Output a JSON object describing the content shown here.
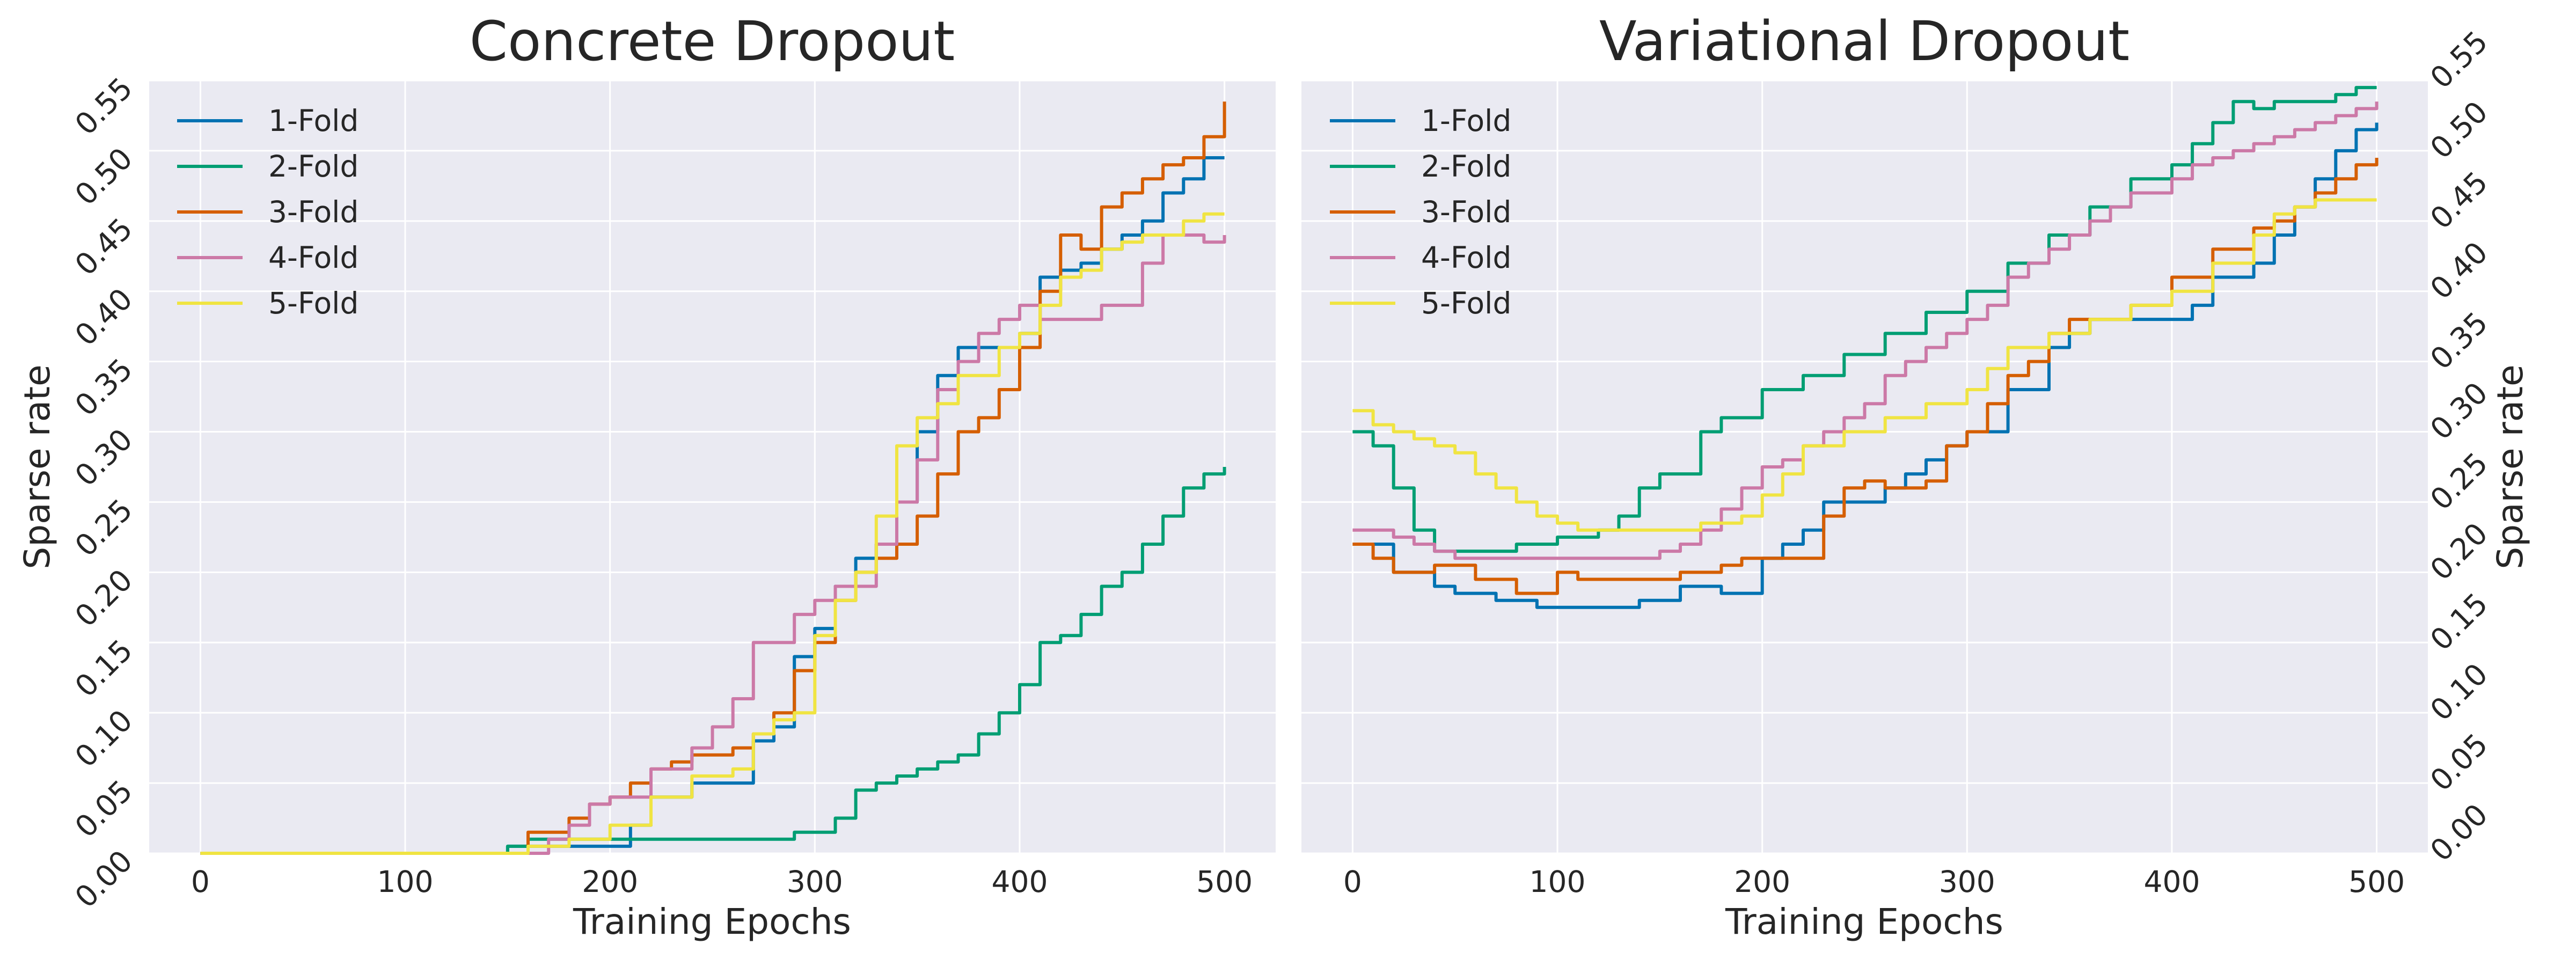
{
  "chart_data": [
    {
      "type": "line",
      "title": "Concrete Dropout",
      "xlabel": "Training Epochs",
      "ylabel": "Sparse rate",
      "ylabel_side": "left",
      "xlim": [
        -25,
        525
      ],
      "ylim": [
        0.0,
        0.55
      ],
      "xticks": [
        "0",
        "100",
        "200",
        "300",
        "400",
        "500"
      ],
      "yticks": [
        "0.00",
        "0.05",
        "0.10",
        "0.15",
        "0.20",
        "0.25",
        "0.30",
        "0.35",
        "0.40",
        "0.45",
        "0.50",
        "0.55"
      ],
      "grid": true,
      "legend": "top-left",
      "series": [
        {
          "name": "1-Fold",
          "color": "#0072B2",
          "x": [
            0,
            140,
            150,
            160,
            200,
            210,
            220,
            240,
            260,
            270,
            280,
            290,
            300,
            310,
            320,
            330,
            340,
            350,
            360,
            370,
            380,
            390,
            400,
            410,
            420,
            430,
            440,
            450,
            460,
            470,
            480,
            490,
            500
          ],
          "y": [
            0.0,
            0.0,
            0.005,
            0.005,
            0.005,
            0.02,
            0.04,
            0.05,
            0.05,
            0.08,
            0.09,
            0.14,
            0.16,
            0.19,
            0.21,
            0.22,
            0.25,
            0.3,
            0.34,
            0.36,
            0.36,
            0.36,
            0.37,
            0.41,
            0.415,
            0.42,
            0.43,
            0.44,
            0.45,
            0.47,
            0.48,
            0.495,
            0.495
          ]
        },
        {
          "name": "2-Fold",
          "color": "#009E73",
          "x": [
            0,
            140,
            150,
            160,
            280,
            290,
            300,
            310,
            320,
            330,
            340,
            350,
            360,
            370,
            380,
            390,
            400,
            410,
            420,
            430,
            440,
            450,
            460,
            470,
            480,
            490,
            500
          ],
          "y": [
            0.0,
            0.0,
            0.005,
            0.01,
            0.01,
            0.015,
            0.015,
            0.025,
            0.045,
            0.05,
            0.055,
            0.06,
            0.065,
            0.07,
            0.085,
            0.1,
            0.12,
            0.15,
            0.155,
            0.17,
            0.19,
            0.2,
            0.22,
            0.24,
            0.26,
            0.27,
            0.275
          ]
        },
        {
          "name": "3-Fold",
          "color": "#D55E00",
          "x": [
            0,
            150,
            160,
            170,
            180,
            190,
            200,
            210,
            220,
            230,
            240,
            250,
            260,
            270,
            280,
            290,
            300,
            310,
            320,
            330,
            340,
            350,
            360,
            370,
            380,
            390,
            400,
            410,
            420,
            430,
            440,
            450,
            460,
            470,
            480,
            490,
            500
          ],
          "y": [
            0.0,
            0.0,
            0.015,
            0.015,
            0.025,
            0.035,
            0.04,
            0.05,
            0.06,
            0.065,
            0.07,
            0.07,
            0.075,
            0.085,
            0.1,
            0.13,
            0.15,
            0.18,
            0.2,
            0.21,
            0.22,
            0.24,
            0.27,
            0.3,
            0.31,
            0.33,
            0.36,
            0.4,
            0.44,
            0.43,
            0.46,
            0.47,
            0.48,
            0.49,
            0.495,
            0.51,
            0.535
          ]
        },
        {
          "name": "4-Fold",
          "color": "#CC79A7",
          "x": [
            0,
            150,
            170,
            180,
            190,
            200,
            210,
            220,
            240,
            250,
            260,
            270,
            280,
            290,
            300,
            310,
            320,
            330,
            340,
            350,
            360,
            370,
            380,
            390,
            400,
            410,
            420,
            430,
            440,
            450,
            460,
            470,
            480,
            490,
            500
          ],
          "y": [
            0.0,
            0.0,
            0.01,
            0.02,
            0.035,
            0.04,
            0.04,
            0.06,
            0.075,
            0.09,
            0.11,
            0.15,
            0.15,
            0.17,
            0.18,
            0.19,
            0.19,
            0.22,
            0.25,
            0.28,
            0.33,
            0.35,
            0.37,
            0.38,
            0.39,
            0.38,
            0.38,
            0.38,
            0.39,
            0.39,
            0.42,
            0.44,
            0.44,
            0.435,
            0.44
          ]
        },
        {
          "name": "5-Fold",
          "color": "#F0E442",
          "x": [
            0,
            150,
            160,
            180,
            200,
            220,
            240,
            260,
            270,
            280,
            290,
            300,
            310,
            320,
            330,
            340,
            350,
            360,
            370,
            380,
            390,
            400,
            410,
            420,
            430,
            440,
            450,
            460,
            470,
            480,
            490,
            500
          ],
          "y": [
            0.0,
            0.0,
            0.005,
            0.01,
            0.02,
            0.04,
            0.055,
            0.06,
            0.085,
            0.095,
            0.1,
            0.155,
            0.18,
            0.2,
            0.24,
            0.29,
            0.31,
            0.32,
            0.34,
            0.34,
            0.36,
            0.37,
            0.39,
            0.41,
            0.415,
            0.43,
            0.435,
            0.44,
            0.44,
            0.45,
            0.455,
            0.455
          ]
        }
      ]
    },
    {
      "type": "line",
      "title": "Variational Dropout",
      "xlabel": "Training Epochs",
      "ylabel": "Sparse rate",
      "ylabel_side": "right",
      "xlim": [
        -25,
        525
      ],
      "ylim": [
        0.0,
        0.55
      ],
      "xticks": [
        "0",
        "100",
        "200",
        "300",
        "400",
        "500"
      ],
      "yticks": [
        "0.00",
        "0.05",
        "0.10",
        "0.15",
        "0.20",
        "0.25",
        "0.30",
        "0.35",
        "0.40",
        "0.45",
        "0.50",
        "0.55"
      ],
      "grid": true,
      "legend": "top-left",
      "series": [
        {
          "name": "1-Fold",
          "color": "#0072B2",
          "x": [
            0,
            10,
            20,
            40,
            50,
            70,
            90,
            100,
            130,
            140,
            160,
            170,
            180,
            200,
            210,
            220,
            230,
            240,
            260,
            270,
            280,
            290,
            300,
            320,
            340,
            350,
            360,
            380,
            400,
            410,
            420,
            440,
            450,
            460,
            470,
            480,
            490,
            500
          ],
          "y": [
            0.22,
            0.22,
            0.2,
            0.19,
            0.185,
            0.18,
            0.175,
            0.175,
            0.175,
            0.18,
            0.19,
            0.19,
            0.185,
            0.21,
            0.22,
            0.23,
            0.25,
            0.25,
            0.26,
            0.27,
            0.28,
            0.29,
            0.3,
            0.33,
            0.36,
            0.37,
            0.38,
            0.38,
            0.38,
            0.39,
            0.41,
            0.42,
            0.44,
            0.46,
            0.48,
            0.5,
            0.515,
            0.52
          ]
        },
        {
          "name": "2-Fold",
          "color": "#009E73",
          "x": [
            0,
            10,
            20,
            30,
            40,
            60,
            80,
            100,
            120,
            130,
            140,
            150,
            160,
            170,
            180,
            200,
            220,
            240,
            260,
            280,
            300,
            320,
            340,
            360,
            380,
            400,
            410,
            420,
            430,
            440,
            450,
            460,
            470,
            480,
            490,
            500
          ],
          "y": [
            0.3,
            0.29,
            0.26,
            0.23,
            0.215,
            0.215,
            0.22,
            0.225,
            0.23,
            0.24,
            0.26,
            0.27,
            0.27,
            0.3,
            0.31,
            0.33,
            0.34,
            0.355,
            0.37,
            0.385,
            0.4,
            0.42,
            0.44,
            0.46,
            0.48,
            0.49,
            0.505,
            0.52,
            0.535,
            0.53,
            0.535,
            0.535,
            0.535,
            0.54,
            0.545,
            0.545
          ]
        },
        {
          "name": "3-Fold",
          "color": "#D55E00",
          "x": [
            0,
            10,
            20,
            40,
            60,
            80,
            100,
            110,
            140,
            160,
            180,
            190,
            200,
            220,
            230,
            240,
            250,
            260,
            280,
            290,
            300,
            310,
            320,
            330,
            340,
            350,
            360,
            380,
            400,
            420,
            440,
            450,
            460,
            470,
            480,
            490,
            500
          ],
          "y": [
            0.22,
            0.21,
            0.2,
            0.205,
            0.195,
            0.185,
            0.2,
            0.195,
            0.195,
            0.2,
            0.205,
            0.21,
            0.21,
            0.21,
            0.24,
            0.26,
            0.265,
            0.26,
            0.265,
            0.29,
            0.3,
            0.32,
            0.34,
            0.35,
            0.37,
            0.38,
            0.38,
            0.39,
            0.41,
            0.43,
            0.445,
            0.45,
            0.46,
            0.47,
            0.48,
            0.49,
            0.495
          ]
        },
        {
          "name": "4-Fold",
          "color": "#CC79A7",
          "x": [
            0,
            10,
            20,
            30,
            40,
            50,
            70,
            100,
            130,
            150,
            160,
            170,
            180,
            190,
            200,
            210,
            220,
            230,
            240,
            250,
            260,
            270,
            280,
            290,
            300,
            310,
            320,
            330,
            340,
            350,
            360,
            370,
            380,
            400,
            410,
            420,
            430,
            440,
            450,
            460,
            470,
            480,
            490,
            500
          ],
          "y": [
            0.23,
            0.23,
            0.225,
            0.22,
            0.215,
            0.21,
            0.21,
            0.21,
            0.21,
            0.215,
            0.22,
            0.23,
            0.245,
            0.26,
            0.275,
            0.28,
            0.29,
            0.3,
            0.31,
            0.32,
            0.34,
            0.35,
            0.36,
            0.37,
            0.38,
            0.39,
            0.41,
            0.42,
            0.43,
            0.44,
            0.45,
            0.46,
            0.47,
            0.48,
            0.49,
            0.495,
            0.5,
            0.505,
            0.51,
            0.515,
            0.52,
            0.525,
            0.53,
            0.535
          ]
        },
        {
          "name": "5-Fold",
          "color": "#F0E442",
          "x": [
            0,
            10,
            20,
            30,
            40,
            50,
            60,
            70,
            80,
            90,
            100,
            110,
            130,
            150,
            170,
            190,
            200,
            210,
            220,
            240,
            260,
            280,
            300,
            310,
            320,
            340,
            360,
            380,
            400,
            420,
            440,
            450,
            460,
            470,
            480,
            500
          ],
          "y": [
            0.315,
            0.305,
            0.3,
            0.295,
            0.29,
            0.285,
            0.27,
            0.26,
            0.25,
            0.24,
            0.235,
            0.23,
            0.23,
            0.23,
            0.235,
            0.24,
            0.255,
            0.27,
            0.29,
            0.3,
            0.31,
            0.32,
            0.33,
            0.345,
            0.36,
            0.37,
            0.38,
            0.39,
            0.4,
            0.42,
            0.44,
            0.455,
            0.46,
            0.465,
            0.465,
            0.465
          ]
        }
      ]
    }
  ]
}
